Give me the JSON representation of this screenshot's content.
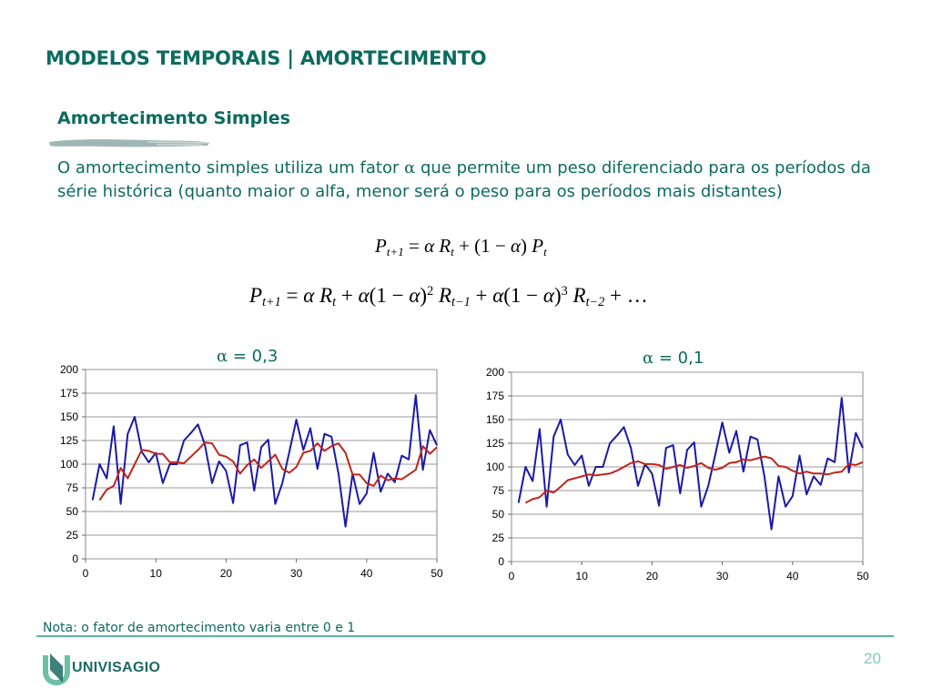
{
  "title": "MODELOS TEMPORAIS | AMORTECIMENTO",
  "section": "Amortecimento Simples",
  "body": {
    "part1": "O amortecimento simples utiliza um fator ",
    "alpha": "α",
    "part2": " que permite um peso diferenciado para os períodos da série histórica (quanto maior o alfa, menor será o peso para os períodos mais distantes)"
  },
  "formula1": {
    "P": "P",
    "t1": "t+1",
    "eq": " = ",
    "alpha": "α",
    "R": " R",
    "t": "t",
    "plus": " + (1 − ",
    "alpha2": "α",
    "close": ") ",
    "P2": "P",
    "t2": "t"
  },
  "formula2": {
    "P": "P",
    "t1": "t+1",
    "eq": " = ",
    "a1": "α",
    "R1": " R",
    "s1": "t",
    "p1": " + ",
    "a2": "α",
    "o1": "(1 − ",
    "a3": "α",
    "c1": ")",
    "e1": "2",
    "R2": " R",
    "s2": "t−1",
    "p2": " + ",
    "a4": "α",
    "o2": "(1 − ",
    "a5": "α",
    "c2": ")",
    "e2": "3",
    "R3": " R",
    "s3": "t−2",
    "tail": " + …"
  },
  "captions": [
    {
      "alpha": "α",
      "text": " = 0,3"
    },
    {
      "alpha": "α",
      "text": " = 0,1"
    }
  ],
  "chart_data": [
    {
      "type": "line",
      "title": "",
      "xlabel": "",
      "ylabel": "",
      "xlim": [
        0,
        50
      ],
      "ylim": [
        0,
        200
      ],
      "xticks": [
        0,
        10,
        20,
        30,
        40,
        50
      ],
      "yticks": [
        0,
        25,
        50,
        75,
        100,
        125,
        150,
        175,
        200
      ],
      "grid": "horizontal",
      "series": [
        {
          "color": "#1a1aa8",
          "x_start": 1,
          "values": [
            62,
            100,
            85,
            140,
            58,
            132,
            150,
            113,
            102,
            112,
            80,
            100,
            100,
            125,
            133,
            142,
            120,
            80,
            103,
            93,
            59,
            120,
            123,
            72,
            118,
            126,
            58,
            80,
            113,
            147,
            115,
            138,
            95,
            132,
            129,
            90,
            34,
            90,
            58,
            69,
            112,
            71,
            90,
            81,
            109,
            105,
            173,
            94,
            136,
            120
          ]
        },
        {
          "color": "#c0241c",
          "x_start": 2,
          "values": [
            62,
            73,
            77,
            96,
            85,
            100,
            115,
            114,
            111,
            111,
            102,
            102,
            101,
            108,
            115,
            123,
            122,
            110,
            108,
            103,
            90,
            99,
            105,
            96,
            103,
            110,
            95,
            91,
            97,
            112,
            114,
            122,
            114,
            119,
            122,
            112,
            89,
            89,
            80,
            77,
            88,
            83,
            85,
            84,
            89,
            94,
            119,
            111,
            118
          ]
        }
      ]
    },
    {
      "type": "line",
      "title": "",
      "xlabel": "",
      "ylabel": "",
      "xlim": [
        0,
        50
      ],
      "ylim": [
        0,
        200
      ],
      "xticks": [
        0,
        10,
        20,
        30,
        40,
        50
      ],
      "yticks": [
        0,
        25,
        50,
        75,
        100,
        125,
        150,
        175,
        200
      ],
      "grid": "horizontal",
      "series": [
        {
          "color": "#1a1aa8",
          "x_start": 1,
          "values": [
            62,
            100,
            85,
            140,
            58,
            132,
            150,
            113,
            102,
            112,
            80,
            100,
            100,
            125,
            133,
            142,
            120,
            80,
            103,
            93,
            59,
            120,
            123,
            72,
            118,
            126,
            58,
            80,
            113,
            147,
            115,
            138,
            95,
            132,
            129,
            90,
            34,
            90,
            58,
            69,
            112,
            71,
            90,
            81,
            109,
            105,
            173,
            94,
            136,
            120
          ]
        },
        {
          "color": "#c0241c",
          "x_start": 2,
          "values": [
            62,
            66,
            68,
            75,
            73,
            79,
            86,
            88,
            90,
            92,
            91,
            92,
            93,
            96,
            100,
            104,
            106,
            103,
            103,
            102,
            98,
            100,
            102,
            99,
            101,
            104,
            99,
            97,
            99,
            104,
            105,
            108,
            107,
            109,
            111,
            109,
            101,
            100,
            96,
            93,
            95,
            93,
            93,
            92,
            94,
            95,
            103,
            102,
            105
          ]
        }
      ]
    }
  ],
  "note": "Nota: o fator de amortecimento varia entre 0 e 1",
  "logo": "UNIVISAGIO",
  "page_number": "20",
  "colors": {
    "accent": "#0d6b5f",
    "rule": "#5fb0a4",
    "page_number": "#7fc9b5"
  }
}
